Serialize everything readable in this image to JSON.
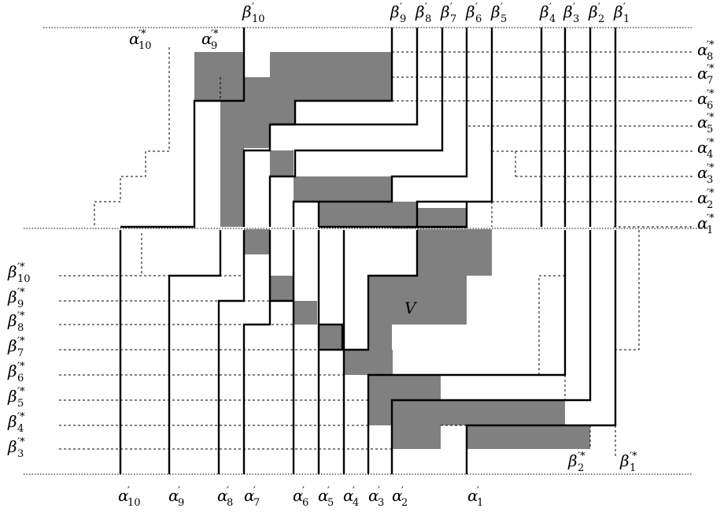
{
  "region_label": "V",
  "top_labels": [
    {
      "base": "β",
      "sub": "10",
      "sup": "′"
    },
    {
      "base": "β",
      "sub": "9",
      "sup": "′"
    },
    {
      "base": "β",
      "sub": "8",
      "sup": "′"
    },
    {
      "base": "β",
      "sub": "7",
      "sup": "′"
    },
    {
      "base": "β",
      "sub": "6",
      "sup": "′"
    },
    {
      "base": "β",
      "sub": "5",
      "sup": "′"
    },
    {
      "base": "β",
      "sub": "4",
      "sup": "′"
    },
    {
      "base": "β",
      "sub": "3",
      "sup": "′"
    },
    {
      "base": "β",
      "sub": "2",
      "sup": "′"
    },
    {
      "base": "β",
      "sub": "1",
      "sup": "′"
    }
  ],
  "right_labels": [
    {
      "base": "α",
      "sub": "8",
      "sup": "′*"
    },
    {
      "base": "α",
      "sub": "7",
      "sup": "′*"
    },
    {
      "base": "α",
      "sub": "6",
      "sup": "′*"
    },
    {
      "base": "α",
      "sub": "5",
      "sup": "′*"
    },
    {
      "base": "α",
      "sub": "4",
      "sup": "′*"
    },
    {
      "base": "α",
      "sub": "3",
      "sup": "′*"
    },
    {
      "base": "α",
      "sub": "2",
      "sup": "′*"
    },
    {
      "base": "α",
      "sub": "1",
      "sup": "′*"
    }
  ],
  "inner_top_labels": [
    {
      "base": "α",
      "sub": "10",
      "sup": "′*"
    },
    {
      "base": "α",
      "sub": "9",
      "sup": "′*"
    }
  ],
  "left_labels": [
    {
      "base": "β",
      "sub": "10",
      "sup": "′*"
    },
    {
      "base": "β",
      "sub": "9",
      "sup": "′*"
    },
    {
      "base": "β",
      "sub": "8",
      "sup": "′*"
    },
    {
      "base": "β",
      "sub": "7",
      "sup": "′*"
    },
    {
      "base": "β",
      "sub": "6",
      "sup": "′*"
    },
    {
      "base": "β",
      "sub": "5",
      "sup": "′*"
    },
    {
      "base": "β",
      "sub": "4",
      "sup": "′*"
    },
    {
      "base": "β",
      "sub": "3",
      "sup": "′*"
    }
  ],
  "inner_bottom_labels": [
    {
      "base": "β",
      "sub": "2",
      "sup": "′*"
    },
    {
      "base": "β",
      "sub": "1",
      "sup": "′*"
    }
  ],
  "bottom_labels": [
    {
      "base": "α",
      "sub": "10",
      "sup": "′"
    },
    {
      "base": "α",
      "sub": "9",
      "sup": "′"
    },
    {
      "base": "α",
      "sub": "8",
      "sup": "′"
    },
    {
      "base": "α",
      "sub": "7",
      "sup": "′"
    },
    {
      "base": "α",
      "sub": "6",
      "sup": "′"
    },
    {
      "base": "α",
      "sub": "5",
      "sup": "′"
    },
    {
      "base": "α",
      "sub": "4",
      "sup": "′"
    },
    {
      "base": "α",
      "sub": "3",
      "sup": "′"
    },
    {
      "base": "α",
      "sub": "2",
      "sup": "′"
    },
    {
      "base": "α",
      "sub": "1",
      "sup": "′"
    }
  ]
}
